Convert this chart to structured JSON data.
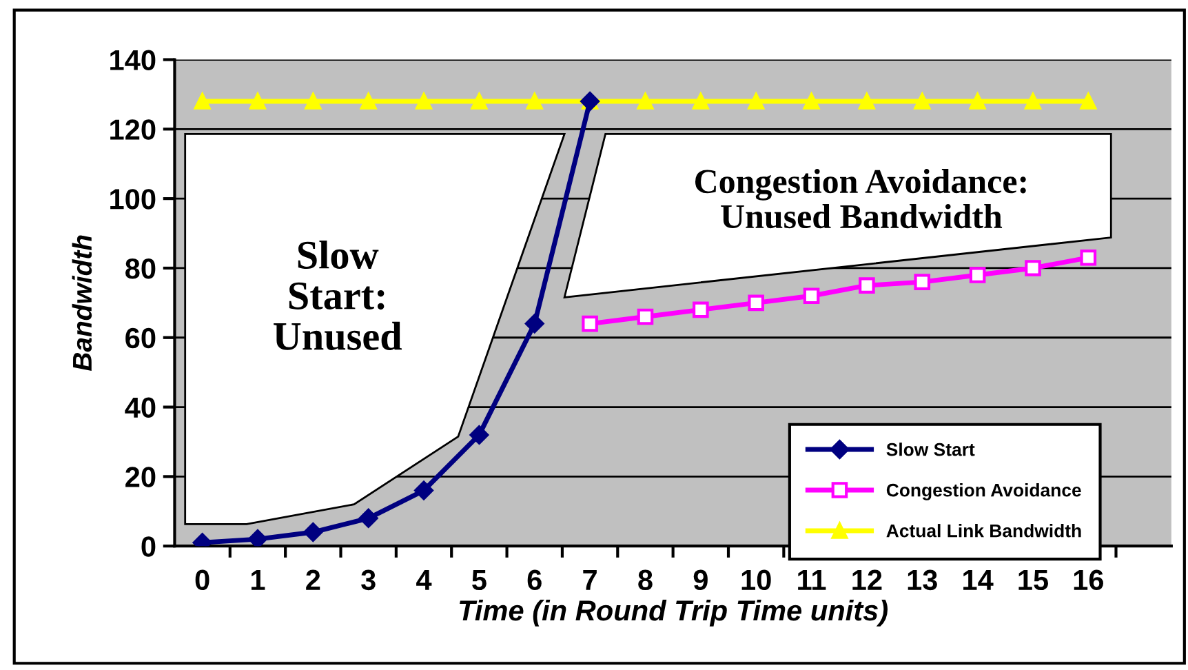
{
  "chart_data": {
    "type": "line",
    "xlabel": "Time (in Round Trip Time units)",
    "ylabel": "Bandwidth",
    "categories": [
      "0",
      "1",
      "2",
      "3",
      "4",
      "5",
      "6",
      "7",
      "8",
      "9",
      "10",
      "11",
      "12",
      "13",
      "14",
      "15",
      "16",
      null
    ],
    "series": [
      {
        "name": "Slow Start",
        "color": "#000080",
        "marker": "diamond",
        "values": [
          1,
          2,
          4,
          8,
          16,
          32,
          64,
          128,
          null,
          null,
          null,
          null,
          null,
          null,
          null,
          null,
          null,
          null
        ]
      },
      {
        "name": "Congestion Avoidance",
        "color": "#ff00ff",
        "marker": "square",
        "values": [
          null,
          null,
          null,
          null,
          null,
          null,
          null,
          64,
          66,
          68,
          70,
          72,
          75,
          76,
          78,
          80,
          83,
          null
        ]
      },
      {
        "name": "Actual Link Bandwidth",
        "color": "#ffff00",
        "marker": "triangle",
        "values": [
          128,
          128,
          128,
          128,
          128,
          128,
          128,
          128,
          128,
          128,
          128,
          128,
          128,
          128,
          128,
          128,
          128,
          null
        ]
      }
    ],
    "ylim": [
      0,
      140
    ],
    "yticks": [
      0,
      20,
      40,
      60,
      80,
      100,
      120,
      140
    ],
    "grid": "y",
    "legend": "bottom right",
    "line_style": "solid",
    "annotations": [
      "Slow\nStart:\nUnused",
      "Congestion Avoidance:\nUnused Bandwidth"
    ]
  }
}
